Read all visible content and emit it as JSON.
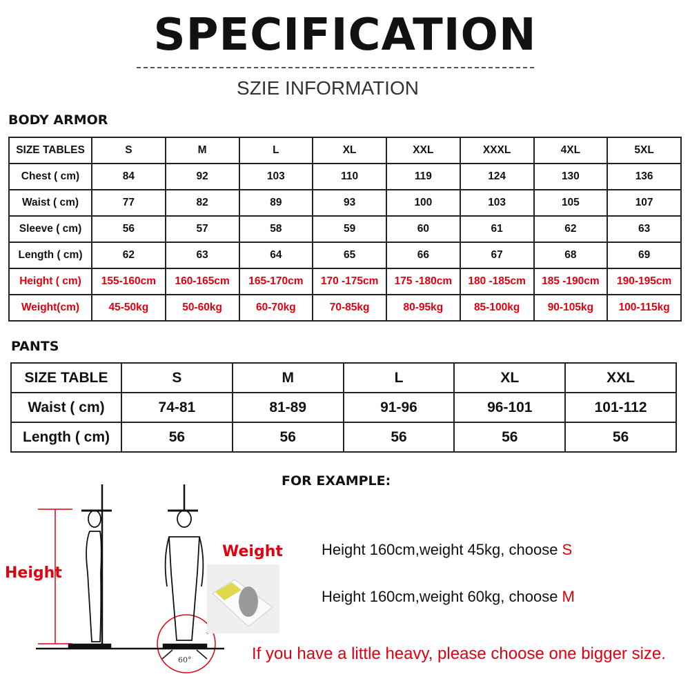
{
  "title": "SPECIFICATION",
  "subtitle": "SZIE INFORMATION",
  "body_armor": {
    "heading": "BODY ARMOR",
    "header": [
      "SIZE TABLES",
      "S",
      "M",
      "L",
      "XL",
      "XXL",
      "XXXL",
      "4XL",
      "5XL"
    ],
    "rows": [
      [
        "Chest ( cm)",
        "84",
        "92",
        "103",
        "110",
        "119",
        "124",
        "130",
        "136"
      ],
      [
        "Waist ( cm)",
        "77",
        "82",
        "89",
        "93",
        "100",
        "103",
        "105",
        "107"
      ],
      [
        "Sleeve ( cm)",
        "56",
        "57",
        "58",
        "59",
        "60",
        "61",
        "62",
        "63"
      ],
      [
        "Length ( cm)",
        "62",
        "63",
        "64",
        "65",
        "66",
        "67",
        "68",
        "69"
      ],
      [
        "Height ( cm)",
        "155-160cm",
        "160-165cm",
        "165-170cm",
        "170 -175cm",
        "175 -180cm",
        "180 -185cm",
        "185 -190cm",
        "190-195cm"
      ],
      [
        "Weight(cm)",
        "45-50kg",
        "50-60kg",
        "60-70kg",
        "70-85kg",
        "80-95kg",
        "85-100kg",
        "90-105kg",
        "100-115kg"
      ]
    ],
    "red_rows": [
      4,
      5
    ]
  },
  "pants": {
    "heading": "PANTS",
    "header": [
      "SIZE TABLE",
      "S",
      "M",
      "L",
      "XL",
      "XXL"
    ],
    "rows": [
      [
        "Waist ( cm)",
        "74-81",
        "81-89",
        "91-96",
        "96-101",
        "101-112"
      ],
      [
        "Length ( cm)",
        "56",
        "56",
        "56",
        "56",
        "56"
      ]
    ]
  },
  "example": {
    "heading": "FOR EXAMPLE:",
    "line1": {
      "text": "Height 160cm,weight 45kg, choose ",
      "size": "S"
    },
    "line2": {
      "text": "Height 160cm,weight 60kg, choose ",
      "size": "M"
    },
    "note": "If you have a little heavy, please choose one bigger size.",
    "height_label": "Height",
    "weight_label": "Weight",
    "angle_label": "60°"
  },
  "colors": {
    "accent_red": "#e0000f",
    "border": "#222222"
  }
}
